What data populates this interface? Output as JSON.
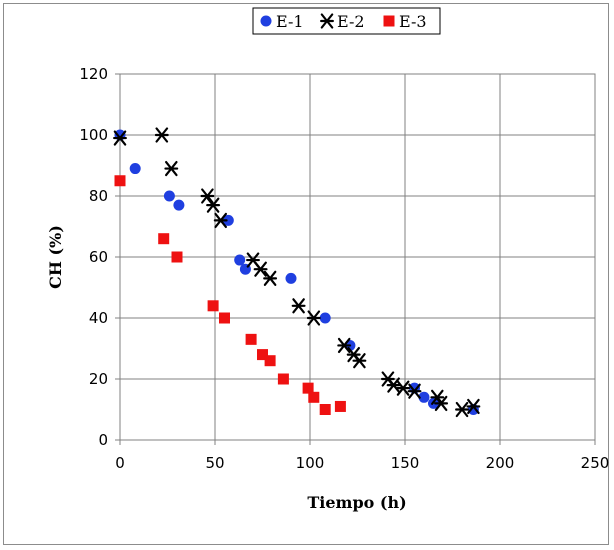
{
  "chart_data": {
    "type": "scatter",
    "title": "",
    "xlabel": "Tiempo (h)",
    "ylabel": "CH (%)",
    "xlim": [
      0,
      250
    ],
    "ylim": [
      0,
      120
    ],
    "x_ticks": [
      0,
      50,
      100,
      150,
      200,
      250
    ],
    "y_ticks": [
      0,
      20,
      40,
      60,
      80,
      100,
      120
    ],
    "grid": true,
    "legend_position": "top",
    "series": [
      {
        "name": "E-1",
        "marker": "circle",
        "color": "#1f3fe0",
        "points": [
          [
            0,
            100
          ],
          [
            8,
            89
          ],
          [
            26,
            80
          ],
          [
            31,
            77
          ],
          [
            57,
            72
          ],
          [
            63,
            59
          ],
          [
            66,
            56
          ],
          [
            90,
            53
          ],
          [
            108,
            40
          ],
          [
            121,
            31
          ],
          [
            155,
            17
          ],
          [
            160,
            14
          ],
          [
            165,
            12
          ],
          [
            186,
            10
          ]
        ]
      },
      {
        "name": "E-2",
        "marker": "asterisk",
        "color": "#000000",
        "points": [
          [
            0,
            99
          ],
          [
            22,
            100
          ],
          [
            27,
            89
          ],
          [
            46,
            80
          ],
          [
            49,
            77
          ],
          [
            53,
            72
          ],
          [
            70,
            59
          ],
          [
            74,
            56
          ],
          [
            79,
            53
          ],
          [
            94,
            44
          ],
          [
            102,
            40
          ],
          [
            118,
            31
          ],
          [
            123,
            28
          ],
          [
            126,
            26
          ],
          [
            141,
            20
          ],
          [
            144,
            18
          ],
          [
            149,
            17
          ],
          [
            155,
            16
          ],
          [
            167,
            14
          ],
          [
            169,
            12
          ],
          [
            180,
            10
          ],
          [
            186,
            11
          ]
        ]
      },
      {
        "name": "E-3",
        "marker": "square",
        "color": "#ee1111",
        "points": [
          [
            0,
            85
          ],
          [
            23,
            66
          ],
          [
            30,
            60
          ],
          [
            49,
            44
          ],
          [
            55,
            40
          ],
          [
            69,
            33
          ],
          [
            75,
            28
          ],
          [
            79,
            26
          ],
          [
            86,
            20
          ],
          [
            99,
            17
          ],
          [
            102,
            14
          ],
          [
            108,
            10
          ],
          [
            116,
            11
          ]
        ]
      }
    ]
  }
}
